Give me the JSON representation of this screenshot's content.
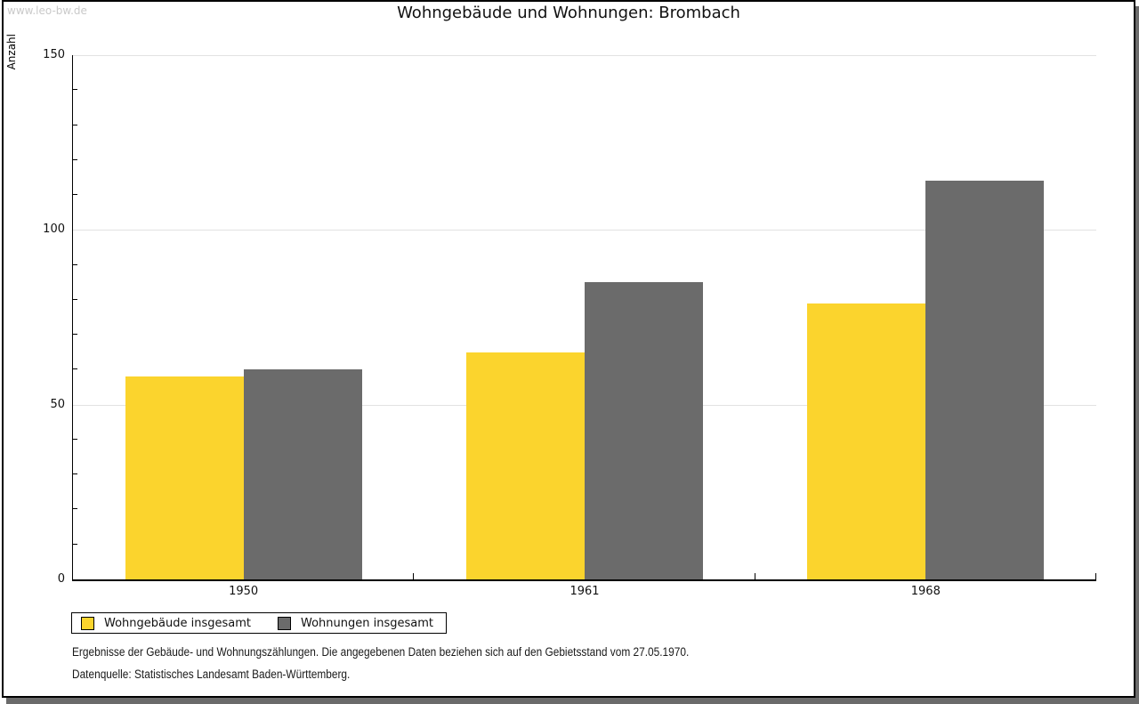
{
  "watermark": "www.leo-bw.de",
  "header": {
    "title": "Wohngebäude und Wohnungen: Brombach"
  },
  "chart_data": {
    "type": "bar",
    "title": "Wohngebäude und Wohnungen: Brombach",
    "xlabel": "",
    "ylabel": "Anzahl",
    "categories": [
      "1950",
      "1961",
      "1968"
    ],
    "series": [
      {
        "name": "Wohngebäude insgesamt",
        "color": "#fbd42d",
        "values": [
          58,
          65,
          79
        ]
      },
      {
        "name": "Wohnungen insgesamt",
        "color": "#6b6b6b",
        "values": [
          60,
          85,
          114
        ]
      }
    ],
    "ylim": [
      0,
      150
    ],
    "yticks": [
      0,
      50,
      100,
      150
    ],
    "minor_tick_step": 10,
    "grid": "horizontal-major",
    "legend_position": "bottom-left"
  },
  "legend": {
    "items": [
      {
        "label": "Wohngebäude insgesamt",
        "color": "#fbd42d"
      },
      {
        "label": "Wohnungen insgesamt",
        "color": "#6b6b6b"
      }
    ]
  },
  "footnotes": {
    "line1": "Ergebnisse der Gebäude- und Wohnungszählungen. Die angegebenen Daten beziehen sich auf den Gebietsstand vom 27.05.1970.",
    "line2": "Datenquelle: Statistisches Landesamt Baden-Württemberg."
  },
  "colors": {
    "series_yellow": "#fbd42d",
    "series_gray": "#6b6b6b",
    "gridline": "#e2e2e2",
    "axis": "#000000",
    "watermark_text": "#c9c9c9",
    "frame_shadow": "#6b6b6b",
    "background": "#ffffff"
  }
}
